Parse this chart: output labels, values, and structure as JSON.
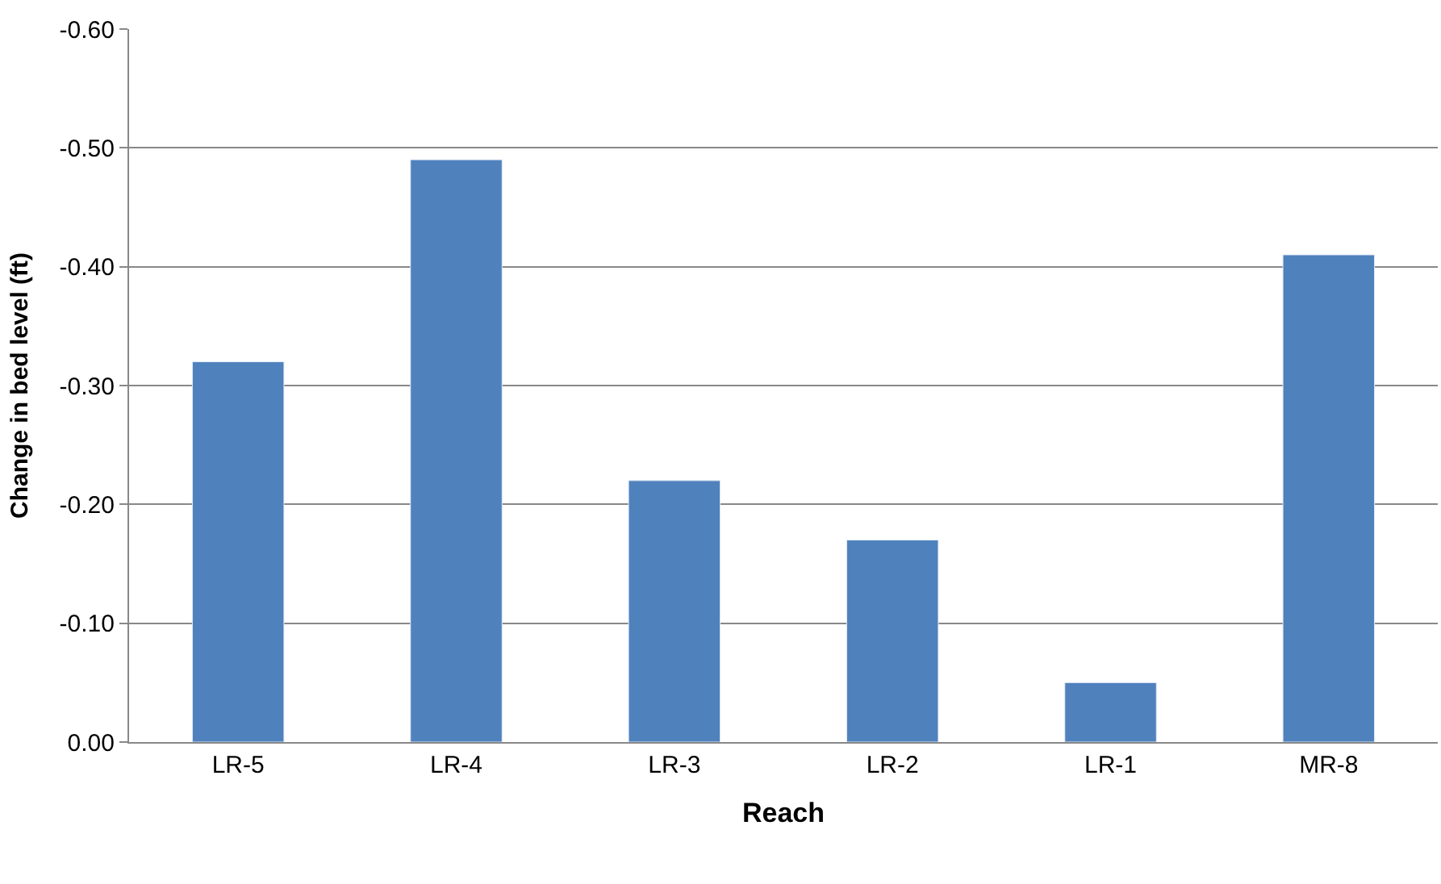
{
  "chart_data": {
    "type": "bar",
    "xlabel": "Reach",
    "ylabel": "Change in bed level (ft)",
    "categories": [
      "LR-5",
      "LR-4",
      "LR-3",
      "LR-2",
      "LR-1",
      "MR-8"
    ],
    "series": [
      {
        "color": "#4f81bd",
        "values": [
          -0.32,
          -0.49,
          -0.22,
          -0.17,
          -0.05,
          -0.41
        ]
      }
    ],
    "ylim": [
      0,
      -0.6
    ],
    "yticks": [
      {
        "value": 0,
        "label": "0.00"
      },
      {
        "value": -0.1,
        "label": "-0.10"
      },
      {
        "value": -0.2,
        "label": "-0.20"
      },
      {
        "value": -0.3,
        "label": "-0.30"
      },
      {
        "value": -0.4,
        "label": "-0.40"
      },
      {
        "value": -0.5,
        "label": "-0.50"
      },
      {
        "value": -0.6,
        "label": "-0.60"
      }
    ],
    "grid": "y"
  }
}
